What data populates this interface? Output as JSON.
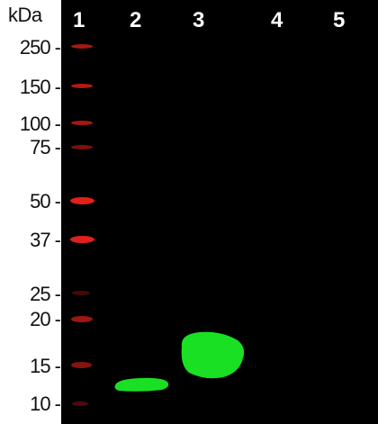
{
  "axis": {
    "unit_label": "kDa"
  },
  "lanes": [
    "1",
    "2",
    "3",
    "4",
    "5"
  ],
  "ladder": [
    {
      "label": "250 -",
      "kda": 250,
      "brightness": 0.75
    },
    {
      "label": "150 -",
      "kda": 150,
      "brightness": 0.8
    },
    {
      "label": "100 -",
      "kda": 100,
      "brightness": 0.75
    },
    {
      "label": "75 -",
      "kda": 75,
      "brightness": 0.55
    },
    {
      "label": "50 -",
      "kda": 50,
      "brightness": 1.0
    },
    {
      "label": "37 -",
      "kda": 37,
      "brightness": 1.0
    },
    {
      "label": "25 -",
      "kda": 25,
      "brightness": 0.3
    },
    {
      "label": "20 -",
      "kda": 20,
      "brightness": 0.7
    },
    {
      "label": "15 -",
      "kda": 15,
      "brightness": 0.6
    },
    {
      "label": "10 -",
      "kda": 10,
      "brightness": 0.35
    }
  ],
  "colors": {
    "blot_background": "#000000",
    "ladder_band": "#e0201a",
    "sample_band": "#19e022",
    "label_text": "#111111",
    "lane_text": "#ffffff"
  }
}
